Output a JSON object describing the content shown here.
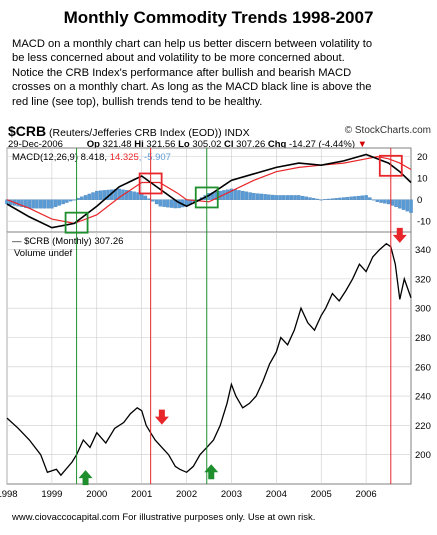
{
  "title": "Monthly Commodity Trends 1998-2007",
  "description": [
    "MACD on a monthly chart can help us better discern between volatility to",
    "be less concerned about and volatility to be more concerned about.",
    "Notice the CRB Index's performance after bullish and bearish MACD",
    "crosses on a monthly chart.   As long as the MACD black line is above the",
    "red line (see top), bullish trends tend to be healthy."
  ],
  "header": {
    "symbol": "$CRB",
    "name": " (Reuters/Jefferies CRB Index (EOD))  INDX",
    "source": "© StockCharts.com",
    "date": "29-Dec-2006",
    "op_label": "Op",
    "op": "321.48",
    "hi_label": "Hi",
    "hi": "321.56",
    "lo_label": "Lo",
    "lo": "305.02",
    "cl_label": "Cl",
    "cl": "307.26",
    "chg_label": "Chg",
    "chg": "-14.27 (-4.44%)",
    "chg_arrow": "▼"
  },
  "footer": "www.ciovaccocapital.com    For illustrative purposes only.   Use at own risk.",
  "colors": {
    "macd_line": "#000000",
    "signal_line": "#e8262a",
    "histogram": "#5b9bd5",
    "price_line": "#000000",
    "red_box": "#e8262a",
    "green_box": "#1f8f2e",
    "bear_arrow": "#e8262a",
    "bull_arrow": "#1f8f2e",
    "grid": "#cccccc"
  },
  "chart_data": [
    {
      "type": "line",
      "legend": "MACD(12,26,9) 8.418, 14.325, -5.907",
      "legend_parts": [
        "MACD(12,26,9) 8.418, ",
        "14.325",
        ", -5.907"
      ],
      "y_ticks": [
        20,
        10,
        0,
        -10
      ],
      "ylim": [
        -15,
        24
      ],
      "series": [
        {
          "name": "MACD",
          "x": [
            1998.0,
            1998.5,
            1999.0,
            1999.5,
            2000.0,
            2000.5,
            2001.0,
            2001.4,
            2001.8,
            2002.0,
            2002.5,
            2003.0,
            2003.5,
            2004.0,
            2004.5,
            2005.0,
            2005.5,
            2006.0,
            2006.25,
            2006.5,
            2006.75,
            2007.0
          ],
          "values": [
            -2,
            -8,
            -13,
            -11,
            -3,
            6,
            11,
            5,
            -1,
            -3,
            2,
            9,
            12,
            15,
            17,
            16,
            18,
            21,
            19,
            17,
            13,
            8
          ]
        },
        {
          "name": "Signal",
          "x": [
            1998.0,
            1998.5,
            1999.0,
            1999.5,
            2000.0,
            2000.5,
            2001.0,
            2001.4,
            2001.8,
            2002.0,
            2002.5,
            2003.0,
            2003.5,
            2004.0,
            2004.5,
            2005.0,
            2005.5,
            2006.0,
            2006.25,
            2006.5,
            2006.75,
            2007.0
          ],
          "values": [
            0,
            -4,
            -9,
            -11,
            -7,
            1,
            8,
            8,
            3,
            0,
            -1,
            4,
            9,
            13,
            15,
            16,
            17,
            19,
            20,
            19,
            17,
            14
          ]
        }
      ],
      "histogram": {
        "x": [
          1998.0,
          1998.5,
          1999.0,
          1999.5,
          2000.0,
          2000.5,
          2001.0,
          2001.4,
          2001.8,
          2002.0,
          2002.5,
          2003.0,
          2003.5,
          2004.0,
          2004.5,
          2005.0,
          2005.5,
          2006.0,
          2006.25,
          2006.5,
          2006.75,
          2007.0
        ],
        "values": [
          -2,
          -4,
          -4,
          0,
          4,
          5,
          3,
          -3,
          -4,
          -3,
          3,
          5,
          3,
          2,
          2,
          0,
          1,
          2,
          -1,
          -2,
          -4,
          -6
        ]
      }
    },
    {
      "type": "line",
      "legend_symbol": "— $CRB (Monthly) 307.26",
      "legend_volume": "Volume undef",
      "y_ticks": [
        340,
        320,
        300,
        280,
        260,
        240,
        220,
        200
      ],
      "ylim": [
        180,
        352
      ],
      "series": [
        {
          "name": "$CRB",
          "x": [
            1998.0,
            1998.25,
            1998.5,
            1998.75,
            1998.9,
            1999.1,
            1999.2,
            1999.45,
            1999.55,
            1999.7,
            1999.85,
            2000.0,
            2000.2,
            2000.4,
            2000.6,
            2000.75,
            2000.9,
            2001.0,
            2001.1,
            2001.2,
            2001.3,
            2001.45,
            2001.6,
            2001.75,
            2001.85,
            2002.0,
            2002.15,
            2002.3,
            2002.45,
            2002.6,
            2002.75,
            2002.9,
            2003.0,
            2003.1,
            2003.25,
            2003.4,
            2003.55,
            2003.7,
            2003.85,
            2004.0,
            2004.1,
            2004.25,
            2004.4,
            2004.55,
            2004.7,
            2004.85,
            2005.0,
            2005.1,
            2005.25,
            2005.4,
            2005.55,
            2005.7,
            2005.85,
            2006.0,
            2006.15,
            2006.3,
            2006.45,
            2006.55,
            2006.65,
            2006.75,
            2006.85,
            2007.0
          ],
          "values": [
            225,
            218,
            210,
            200,
            188,
            190,
            186,
            195,
            200,
            210,
            205,
            215,
            208,
            218,
            222,
            228,
            232,
            230,
            220,
            215,
            210,
            205,
            200,
            192,
            190,
            188,
            192,
            200,
            205,
            210,
            220,
            235,
            248,
            240,
            232,
            235,
            240,
            250,
            262,
            270,
            280,
            275,
            285,
            300,
            290,
            285,
            295,
            300,
            310,
            305,
            312,
            320,
            330,
            325,
            335,
            340,
            344,
            342,
            330,
            306,
            320,
            307
          ]
        }
      ]
    }
  ],
  "x_axis": {
    "type": "date",
    "ticks": [
      "1998",
      "1999",
      "2000",
      "2001",
      "2002",
      "2003",
      "2004",
      "2005",
      "2006"
    ],
    "tick_values": [
      1998,
      1999,
      2000,
      2001,
      2002,
      2003,
      2004,
      2005,
      2006
    ],
    "range": [
      1998,
      2007
    ]
  },
  "annotations": {
    "vertical_lines": [
      {
        "x": 1999.55,
        "color": "green"
      },
      {
        "x": 2001.2,
        "color": "red"
      },
      {
        "x": 2002.45,
        "color": "green"
      },
      {
        "x": 2006.55,
        "color": "red"
      }
    ],
    "boxes": [
      {
        "x": 1999.55,
        "color": "green",
        "signal": "bullish cross"
      },
      {
        "x": 2001.2,
        "color": "red",
        "signal": "bearish cross"
      },
      {
        "x": 2002.45,
        "color": "green",
        "signal": "bullish cross"
      },
      {
        "x": 2006.55,
        "color": "red",
        "signal": "bearish cross"
      }
    ],
    "arrows": [
      {
        "x": 1999.75,
        "direction": "up",
        "color": "green",
        "y_value": 184
      },
      {
        "x": 2001.45,
        "direction": "down",
        "color": "red",
        "y_value": 226
      },
      {
        "x": 2002.55,
        "direction": "up",
        "color": "green",
        "y_value": 188
      },
      {
        "x": 2006.75,
        "direction": "down",
        "color": "red",
        "y_value": 350
      }
    ]
  }
}
